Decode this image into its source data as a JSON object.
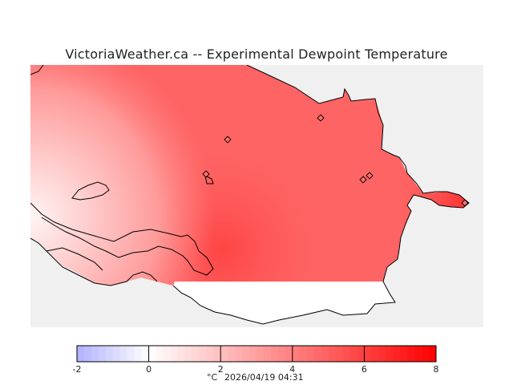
{
  "title": "VictoriaWeather.ca -- Experimental Dewpoint Temperature",
  "legend": {
    "min": -2,
    "max": 8,
    "ticks": [
      "-2",
      "0",
      "2",
      "4",
      "6",
      "8"
    ],
    "unit": "°C",
    "timestamp": "2026/04/19 04:31",
    "color_low": "#b0b0ff",
    "color_mid": "#ffffff",
    "color_high": "#ff0000"
  },
  "map": {
    "background": "#f0f0f0",
    "water": "#ffffff",
    "stations": 6
  }
}
